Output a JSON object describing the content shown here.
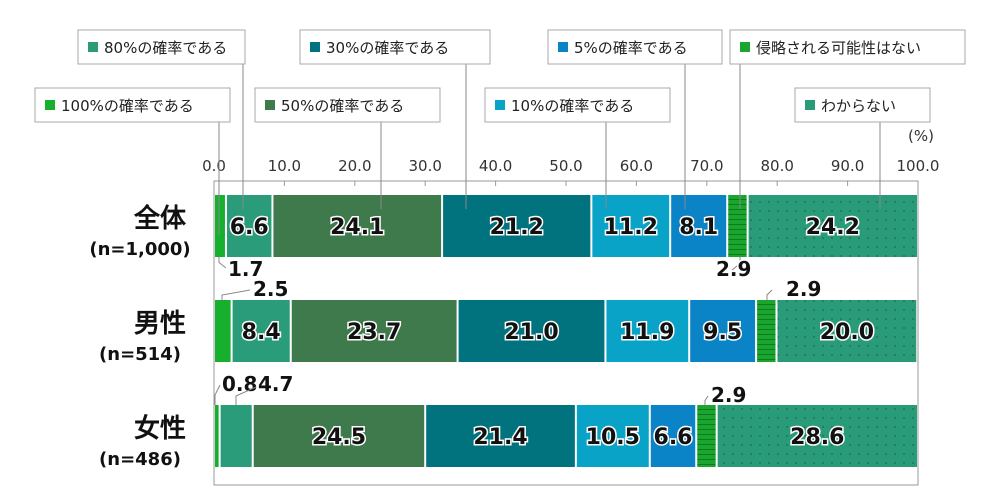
{
  "chart_data": {
    "type": "bar",
    "stacked": true,
    "orientation": "horizontal",
    "unit_label": "(%)",
    "xlim": [
      0,
      100
    ],
    "x_ticks": [
      "0.0",
      "10.0",
      "20.0",
      "30.0",
      "40.0",
      "50.0",
      "60.0",
      "70.0",
      "80.0",
      "90.0",
      "100.0"
    ],
    "categories": [
      {
        "name": "全体",
        "n": "(n=1,000)"
      },
      {
        "name": "男性",
        "n": "(n=514)"
      },
      {
        "name": "女性",
        "n": "(n=486)"
      }
    ],
    "series": [
      {
        "name": "100%の確率である",
        "color": "#16b02e",
        "values": [
          1.7,
          2.5,
          0.8
        ]
      },
      {
        "name": "80%の確率である",
        "color": "#2a9c7a",
        "values": [
          6.6,
          8.4,
          4.7
        ]
      },
      {
        "name": "50%の確率である",
        "color": "#3f7a4c",
        "values": [
          24.1,
          23.7,
          24.5
        ]
      },
      {
        "name": "30%の確率である",
        "color": "#00737e",
        "values": [
          21.2,
          21.0,
          21.4
        ]
      },
      {
        "name": "10%の確率である",
        "color": "#0aa3c8",
        "values": [
          11.2,
          11.9,
          10.5
        ]
      },
      {
        "name": "5%の確率である",
        "color": "#0a84c6",
        "values": [
          8.1,
          9.5,
          6.6
        ]
      },
      {
        "name": "侵略される可能性はない",
        "color": "#1aa62e",
        "pattern": "stripes",
        "values": [
          2.9,
          2.9,
          2.9
        ]
      },
      {
        "name": "わからない",
        "color": "#2a9b78",
        "pattern": "dots",
        "values": [
          24.2,
          20.0,
          28.6
        ]
      }
    ],
    "legend_placement": "top"
  }
}
